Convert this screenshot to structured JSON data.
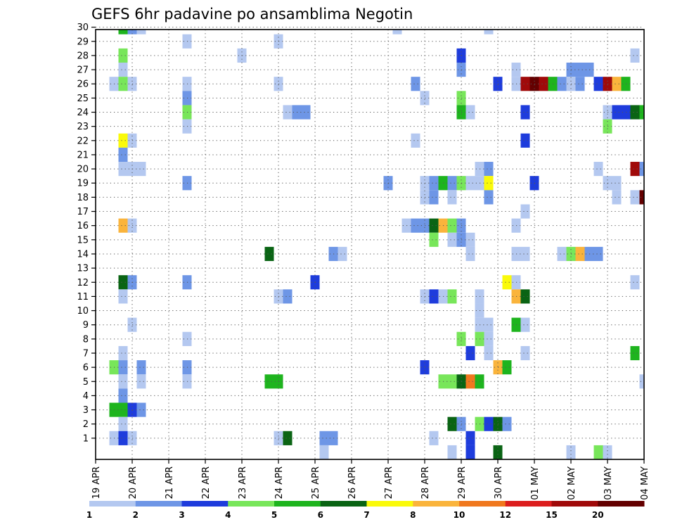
{
  "chart_data": {
    "type": "heatmap",
    "title": "GEFS 6hr padavine po ansamblima Negotin",
    "xlabel": "",
    "ylabel": "",
    "x_tick_labels": [
      "19 APR",
      "20 APR",
      "21 APR",
      "22 APR",
      "23 APR",
      "24 APR",
      "25 APR",
      "26 APR",
      "27 APR",
      "28 APR",
      "29 APR",
      "30 APR",
      "01 MAY",
      "02 MAY",
      "03 MAY",
      "04 MAY"
    ],
    "x_units": "6-hour steps (4 per day)",
    "x_range": [
      0,
      60
    ],
    "y_tick_labels": [
      "1",
      "2",
      "3",
      "4",
      "5",
      "6",
      "7",
      "8",
      "9",
      "10",
      "11",
      "12",
      "13",
      "14",
      "15",
      "16",
      "17",
      "18",
      "19",
      "20",
      "21",
      "22",
      "23",
      "24",
      "25",
      "26",
      "27",
      "28",
      "29",
      "30"
    ],
    "y_range": [
      0,
      30
    ],
    "grid": true,
    "legend": {
      "placement": "bottom",
      "boundary_labels": [
        "1",
        "2",
        "3",
        "4",
        "5",
        "6",
        "7",
        "8",
        "10",
        "12",
        "15",
        "20"
      ],
      "colors": [
        "#b4c8f0",
        "#6e96e6",
        "#1e3cdc",
        "#78e65a",
        "#1eb41e",
        "#0a6414",
        "#fafa0a",
        "#fab43c",
        "#f0781e",
        "#dc1e1e",
        "#a00a0a",
        "#640000"
      ]
    },
    "cells": [
      {
        "x": 3,
        "y": 30,
        "c": 4
      },
      {
        "x": 4,
        "y": 30,
        "c": 1
      },
      {
        "x": 5,
        "y": 30,
        "c": 0
      },
      {
        "x": 33,
        "y": 30,
        "c": 0
      },
      {
        "x": 43,
        "y": 30,
        "c": 0
      },
      {
        "x": 10,
        "y": 29,
        "c": 0
      },
      {
        "x": 20,
        "y": 29,
        "c": 0
      },
      {
        "x": 3,
        "y": 28,
        "c": 3
      },
      {
        "x": 16,
        "y": 28,
        "c": 0
      },
      {
        "x": 40,
        "y": 28,
        "c": 2
      },
      {
        "x": 59,
        "y": 28,
        "c": 0
      },
      {
        "x": 3,
        "y": 27,
        "c": 0
      },
      {
        "x": 40,
        "y": 27,
        "c": 1
      },
      {
        "x": 46,
        "y": 27,
        "c": 0
      },
      {
        "x": 52,
        "y": 27,
        "c": 1
      },
      {
        "x": 53,
        "y": 27,
        "c": 1
      },
      {
        "x": 54,
        "y": 27,
        "c": 1
      },
      {
        "x": 2,
        "y": 26,
        "c": 0
      },
      {
        "x": 3,
        "y": 26,
        "c": 3
      },
      {
        "x": 4,
        "y": 26,
        "c": 0
      },
      {
        "x": 10,
        "y": 26,
        "c": 0
      },
      {
        "x": 20,
        "y": 26,
        "c": 0
      },
      {
        "x": 35,
        "y": 26,
        "c": 1
      },
      {
        "x": 44,
        "y": 26,
        "c": 2
      },
      {
        "x": 46,
        "y": 26,
        "c": 0
      },
      {
        "x": 47,
        "y": 26,
        "c": 10
      },
      {
        "x": 48,
        "y": 26,
        "c": 11
      },
      {
        "x": 49,
        "y": 26,
        "c": 10
      },
      {
        "x": 50,
        "y": 26,
        "c": 4
      },
      {
        "x": 51,
        "y": 26,
        "c": 1
      },
      {
        "x": 52,
        "y": 26,
        "c": 0
      },
      {
        "x": 53,
        "y": 26,
        "c": 1
      },
      {
        "x": 55,
        "y": 26,
        "c": 2
      },
      {
        "x": 56,
        "y": 26,
        "c": 10
      },
      {
        "x": 57,
        "y": 26,
        "c": 7
      },
      {
        "x": 58,
        "y": 26,
        "c": 4
      },
      {
        "x": 10,
        "y": 25,
        "c": 1
      },
      {
        "x": 36,
        "y": 25,
        "c": 0
      },
      {
        "x": 40,
        "y": 25,
        "c": 3
      },
      {
        "x": 10,
        "y": 24,
        "c": 3
      },
      {
        "x": 21,
        "y": 24,
        "c": 0
      },
      {
        "x": 22,
        "y": 24,
        "c": 1
      },
      {
        "x": 23,
        "y": 24,
        "c": 1
      },
      {
        "x": 40,
        "y": 24,
        "c": 4
      },
      {
        "x": 41,
        "y": 24,
        "c": 0
      },
      {
        "x": 47,
        "y": 24,
        "c": 2
      },
      {
        "x": 56,
        "y": 24,
        "c": 0
      },
      {
        "x": 57,
        "y": 24,
        "c": 2
      },
      {
        "x": 58,
        "y": 24,
        "c": 2
      },
      {
        "x": 59,
        "y": 24,
        "c": 5
      },
      {
        "x": 60,
        "y": 24,
        "c": 4
      },
      {
        "x": 10,
        "y": 23,
        "c": 0
      },
      {
        "x": 56,
        "y": 23,
        "c": 3
      },
      {
        "x": 3,
        "y": 22,
        "c": 6
      },
      {
        "x": 4,
        "y": 22,
        "c": 0
      },
      {
        "x": 35,
        "y": 22,
        "c": 0
      },
      {
        "x": 47,
        "y": 22,
        "c": 2
      },
      {
        "x": 3,
        "y": 21,
        "c": 1
      },
      {
        "x": 3,
        "y": 20,
        "c": 0
      },
      {
        "x": 4,
        "y": 20,
        "c": 0
      },
      {
        "x": 5,
        "y": 20,
        "c": 0
      },
      {
        "x": 42,
        "y": 20,
        "c": 0
      },
      {
        "x": 43,
        "y": 20,
        "c": 1
      },
      {
        "x": 55,
        "y": 20,
        "c": 0
      },
      {
        "x": 59,
        "y": 20,
        "c": 10
      },
      {
        "x": 60,
        "y": 20,
        "c": 1
      },
      {
        "x": 10,
        "y": 19,
        "c": 1
      },
      {
        "x": 32,
        "y": 19,
        "c": 1
      },
      {
        "x": 36,
        "y": 19,
        "c": 0
      },
      {
        "x": 37,
        "y": 19,
        "c": 1
      },
      {
        "x": 38,
        "y": 19,
        "c": 4
      },
      {
        "x": 39,
        "y": 19,
        "c": 1
      },
      {
        "x": 40,
        "y": 19,
        "c": 3
      },
      {
        "x": 41,
        "y": 19,
        "c": 0
      },
      {
        "x": 42,
        "y": 19,
        "c": 0
      },
      {
        "x": 43,
        "y": 19,
        "c": 6
      },
      {
        "x": 48,
        "y": 19,
        "c": 2
      },
      {
        "x": 56,
        "y": 19,
        "c": 0
      },
      {
        "x": 57,
        "y": 19,
        "c": 0
      },
      {
        "x": 36,
        "y": 18,
        "c": 0
      },
      {
        "x": 37,
        "y": 18,
        "c": 1
      },
      {
        "x": 39,
        "y": 18,
        "c": 0
      },
      {
        "x": 43,
        "y": 18,
        "c": 1
      },
      {
        "x": 57,
        "y": 18,
        "c": 0
      },
      {
        "x": 59,
        "y": 18,
        "c": 0
      },
      {
        "x": 60,
        "y": 18,
        "c": 11
      },
      {
        "x": 47,
        "y": 17,
        "c": 0
      },
      {
        "x": 3,
        "y": 16,
        "c": 7
      },
      {
        "x": 4,
        "y": 16,
        "c": 0
      },
      {
        "x": 34,
        "y": 16,
        "c": 0
      },
      {
        "x": 35,
        "y": 16,
        "c": 1
      },
      {
        "x": 36,
        "y": 16,
        "c": 1
      },
      {
        "x": 37,
        "y": 16,
        "c": 5
      },
      {
        "x": 38,
        "y": 16,
        "c": 7
      },
      {
        "x": 39,
        "y": 16,
        "c": 3
      },
      {
        "x": 40,
        "y": 16,
        "c": 1
      },
      {
        "x": 46,
        "y": 16,
        "c": 0
      },
      {
        "x": 37,
        "y": 15,
        "c": 3
      },
      {
        "x": 39,
        "y": 15,
        "c": 0
      },
      {
        "x": 40,
        "y": 15,
        "c": 1
      },
      {
        "x": 41,
        "y": 15,
        "c": 0
      },
      {
        "x": 19,
        "y": 14,
        "c": 5
      },
      {
        "x": 26,
        "y": 14,
        "c": 1
      },
      {
        "x": 27,
        "y": 14,
        "c": 0
      },
      {
        "x": 41,
        "y": 14,
        "c": 0
      },
      {
        "x": 46,
        "y": 14,
        "c": 0
      },
      {
        "x": 47,
        "y": 14,
        "c": 0
      },
      {
        "x": 51,
        "y": 14,
        "c": 0
      },
      {
        "x": 52,
        "y": 14,
        "c": 3
      },
      {
        "x": 53,
        "y": 14,
        "c": 7
      },
      {
        "x": 54,
        "y": 14,
        "c": 1
      },
      {
        "x": 55,
        "y": 14,
        "c": 1
      },
      {
        "x": 3,
        "y": 12,
        "c": 5
      },
      {
        "x": 4,
        "y": 12,
        "c": 1
      },
      {
        "x": 10,
        "y": 12,
        "c": 1
      },
      {
        "x": 24,
        "y": 12,
        "c": 2
      },
      {
        "x": 45,
        "y": 12,
        "c": 6
      },
      {
        "x": 46,
        "y": 12,
        "c": 0
      },
      {
        "x": 59,
        "y": 12,
        "c": 0
      },
      {
        "x": 3,
        "y": 11,
        "c": 0
      },
      {
        "x": 20,
        "y": 11,
        "c": 0
      },
      {
        "x": 21,
        "y": 11,
        "c": 1
      },
      {
        "x": 36,
        "y": 11,
        "c": 0
      },
      {
        "x": 37,
        "y": 11,
        "c": 2
      },
      {
        "x": 38,
        "y": 11,
        "c": 0
      },
      {
        "x": 39,
        "y": 11,
        "c": 3
      },
      {
        "x": 42,
        "y": 11,
        "c": 0
      },
      {
        "x": 46,
        "y": 11,
        "c": 7
      },
      {
        "x": 47,
        "y": 11,
        "c": 5
      },
      {
        "x": 42,
        "y": 10,
        "c": 0
      },
      {
        "x": 4,
        "y": 9,
        "c": 0
      },
      {
        "x": 42,
        "y": 9,
        "c": 0
      },
      {
        "x": 43,
        "y": 9,
        "c": 0
      },
      {
        "x": 46,
        "y": 9,
        "c": 4
      },
      {
        "x": 47,
        "y": 9,
        "c": 0
      },
      {
        "x": 10,
        "y": 8,
        "c": 0
      },
      {
        "x": 40,
        "y": 8,
        "c": 3
      },
      {
        "x": 42,
        "y": 8,
        "c": 3
      },
      {
        "x": 43,
        "y": 8,
        "c": 0
      },
      {
        "x": 3,
        "y": 7,
        "c": 0
      },
      {
        "x": 41,
        "y": 7,
        "c": 2
      },
      {
        "x": 43,
        "y": 7,
        "c": 0
      },
      {
        "x": 47,
        "y": 7,
        "c": 0
      },
      {
        "x": 59,
        "y": 7,
        "c": 4
      },
      {
        "x": 2,
        "y": 6,
        "c": 3
      },
      {
        "x": 3,
        "y": 6,
        "c": 1
      },
      {
        "x": 5,
        "y": 6,
        "c": 1
      },
      {
        "x": 10,
        "y": 6,
        "c": 1
      },
      {
        "x": 36,
        "y": 6,
        "c": 2
      },
      {
        "x": 44,
        "y": 6,
        "c": 7
      },
      {
        "x": 45,
        "y": 6,
        "c": 4
      },
      {
        "x": 3,
        "y": 5,
        "c": 0
      },
      {
        "x": 5,
        "y": 5,
        "c": 0
      },
      {
        "x": 10,
        "y": 5,
        "c": 0
      },
      {
        "x": 19,
        "y": 5,
        "c": 4
      },
      {
        "x": 20,
        "y": 5,
        "c": 4
      },
      {
        "x": 38,
        "y": 5,
        "c": 3
      },
      {
        "x": 39,
        "y": 5,
        "c": 3
      },
      {
        "x": 40,
        "y": 5,
        "c": 5
      },
      {
        "x": 41,
        "y": 5,
        "c": 8
      },
      {
        "x": 42,
        "y": 5,
        "c": 4
      },
      {
        "x": 60,
        "y": 5,
        "c": 0
      },
      {
        "x": 3,
        "y": 4,
        "c": 1
      },
      {
        "x": 2,
        "y": 3,
        "c": 4
      },
      {
        "x": 3,
        "y": 3,
        "c": 4
      },
      {
        "x": 4,
        "y": 3,
        "c": 2
      },
      {
        "x": 5,
        "y": 3,
        "c": 1
      },
      {
        "x": 3,
        "y": 2,
        "c": 0
      },
      {
        "x": 39,
        "y": 2,
        "c": 5
      },
      {
        "x": 40,
        "y": 2,
        "c": 1
      },
      {
        "x": 42,
        "y": 2,
        "c": 3
      },
      {
        "x": 43,
        "y": 2,
        "c": 2
      },
      {
        "x": 44,
        "y": 2,
        "c": 5
      },
      {
        "x": 45,
        "y": 2,
        "c": 1
      },
      {
        "x": 2,
        "y": 1,
        "c": 0
      },
      {
        "x": 3,
        "y": 1,
        "c": 2
      },
      {
        "x": 4,
        "y": 1,
        "c": 0
      },
      {
        "x": 20,
        "y": 1,
        "c": 0
      },
      {
        "x": 21,
        "y": 1,
        "c": 5
      },
      {
        "x": 25,
        "y": 1,
        "c": 1
      },
      {
        "x": 26,
        "y": 1,
        "c": 1
      },
      {
        "x": 37,
        "y": 1,
        "c": 0
      },
      {
        "x": 41,
        "y": 1,
        "c": 2
      },
      {
        "x": 25,
        "y": 0,
        "c": 0
      },
      {
        "x": 39,
        "y": 0,
        "c": 0
      },
      {
        "x": 41,
        "y": 0,
        "c": 2
      },
      {
        "x": 44,
        "y": 0,
        "c": 5
      },
      {
        "x": 52,
        "y": 0,
        "c": 0
      },
      {
        "x": 55,
        "y": 0,
        "c": 3
      },
      {
        "x": 56,
        "y": 0,
        "c": 0
      }
    ]
  }
}
